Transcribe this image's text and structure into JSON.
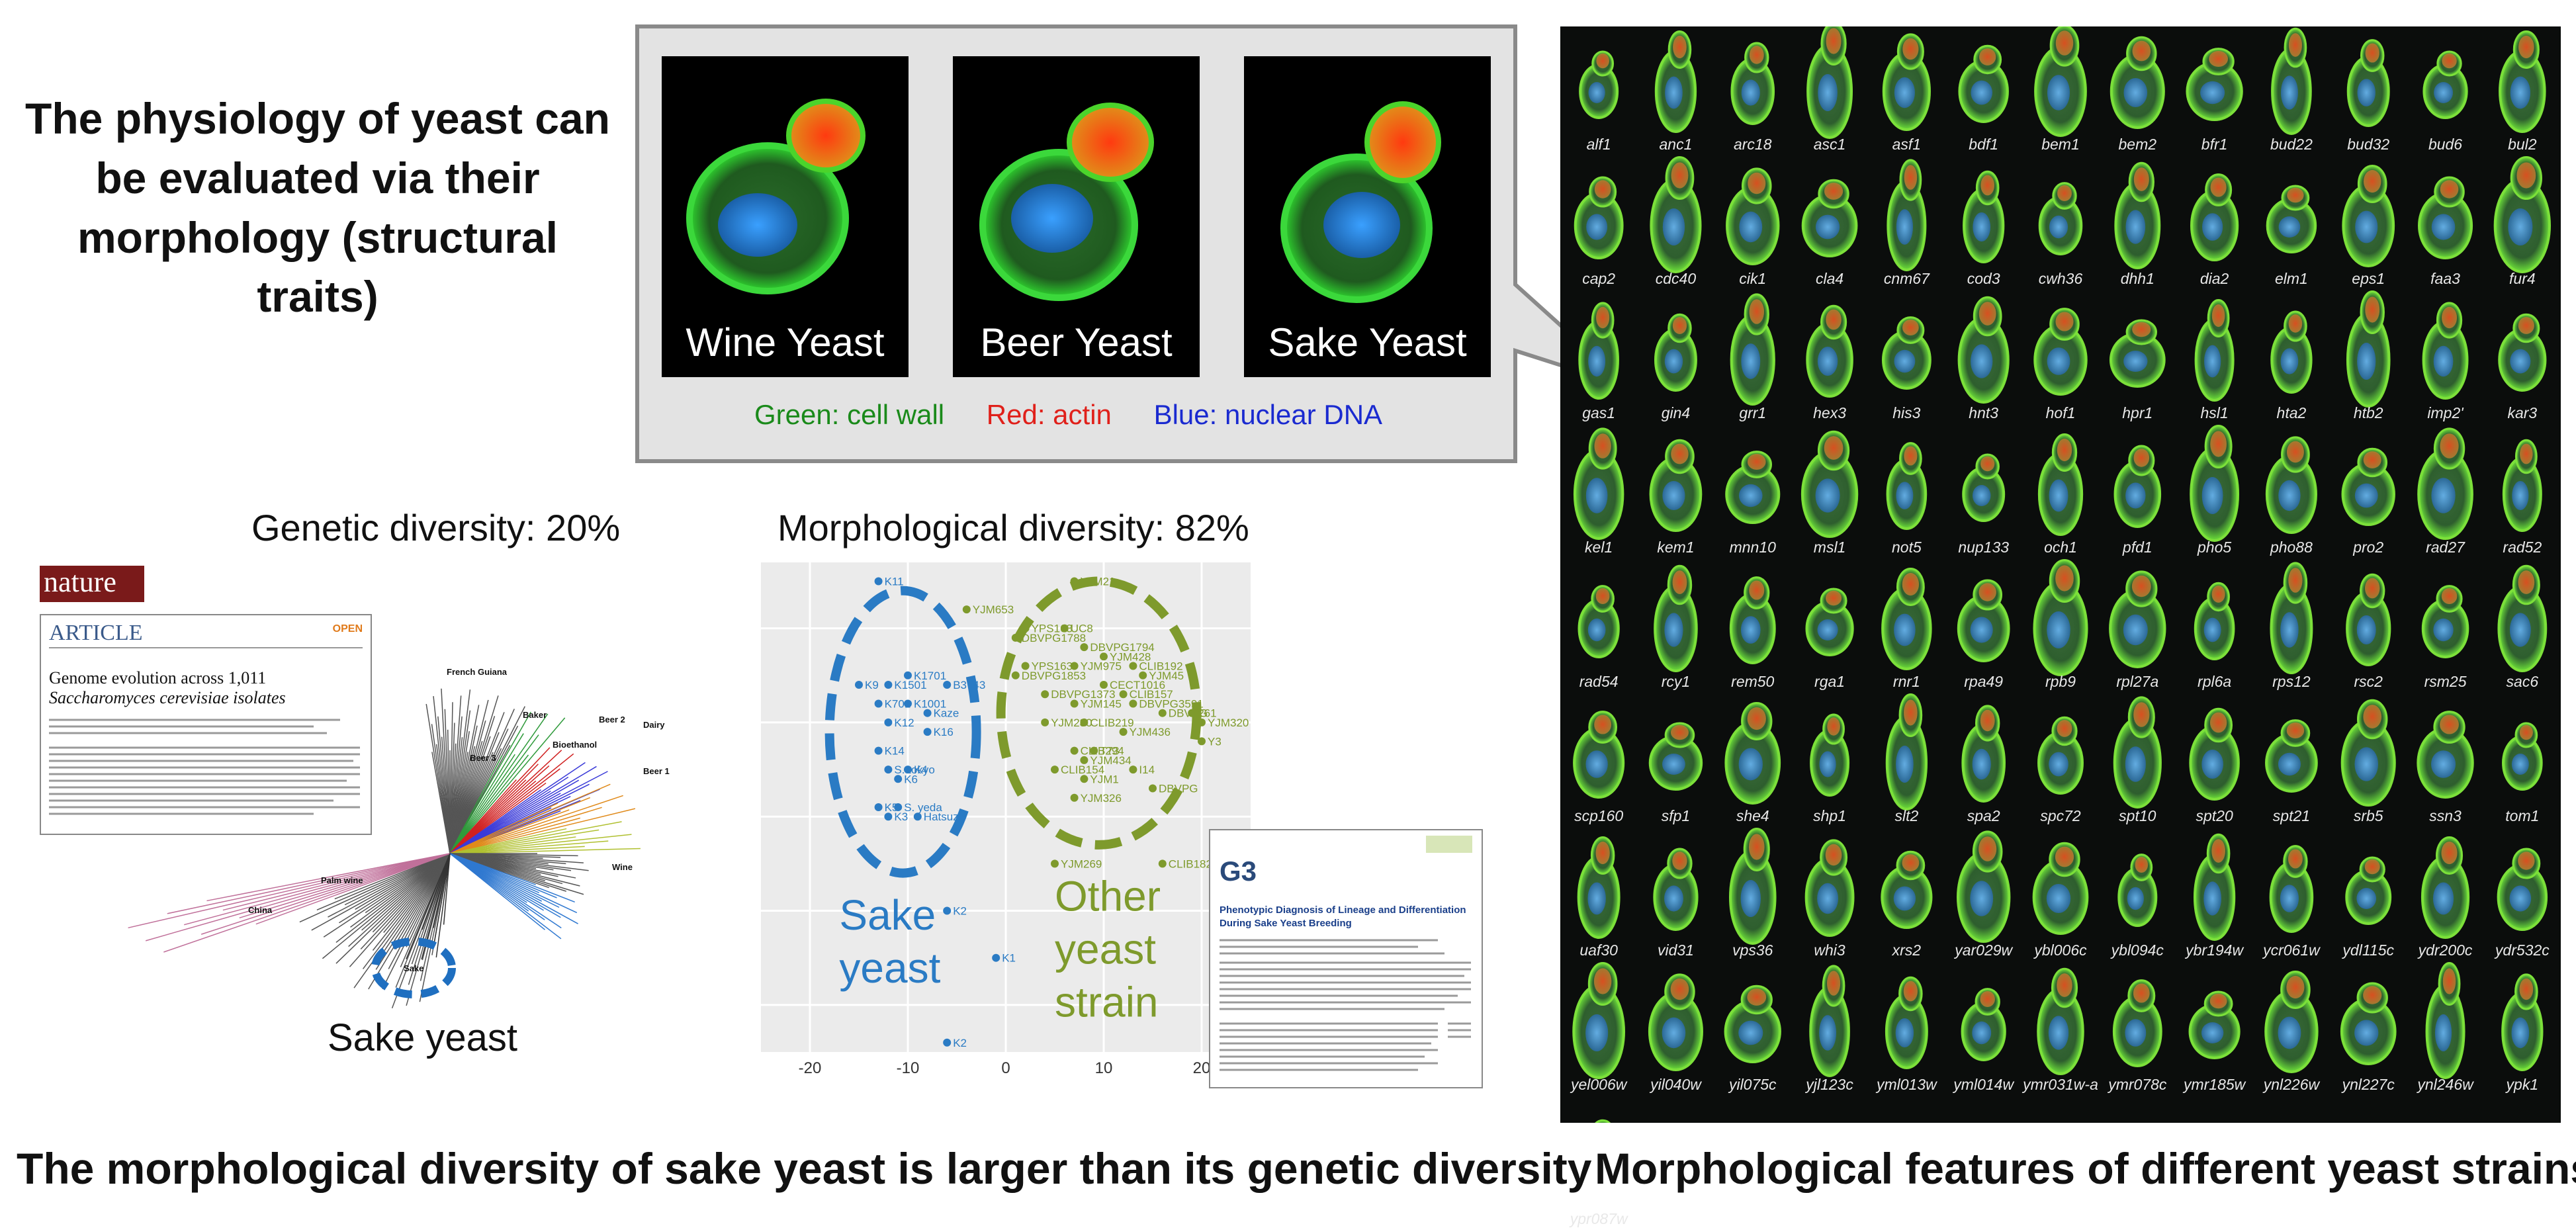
{
  "title_left": [
    "The physiology of yeast can",
    "be evaluated via their",
    "morphology (structural traits)"
  ],
  "panels": [
    {
      "label": "Wine Yeast"
    },
    {
      "label": "Beer Yeast"
    },
    {
      "label": "Sake Yeast"
    }
  ],
  "legend": {
    "green": "Green: cell wall",
    "red": "Red: actin",
    "blue": "Blue: nuclear DNA",
    "colors": {
      "green": "#1a8a1a",
      "red": "#e0201a",
      "blue": "#1a2ad0"
    }
  },
  "genetic_title": "Genetic diversity: 20%",
  "morph_title": "Morphological diversity: 82%",
  "nature": {
    "logo": "nature",
    "section": "ARTICLE",
    "badge": "OPEN",
    "title_line1": "Genome evolution across 1,011",
    "title_line2": "Saccharomyces cerevisiae isolates"
  },
  "tree_labels": {
    "french_guiana": "French Guiana",
    "bakery": "Baker",
    "bioethanol": "Bioethanol",
    "beer2": "Beer 2",
    "dairy": "Dairy",
    "beer1": "Beer 1",
    "beer3": "Beer 3",
    "wine": "Wine",
    "palm_wine": "Palm wine",
    "china": "China",
    "sake": "Sake"
  },
  "sake_yeast_label": "Sake yeast",
  "g3": {
    "logo": "G3",
    "title_line1": "Phenotypic Diagnosis of Lineage and Differentiation",
    "title_line2": "During Sake Yeast Breeding"
  },
  "chart_data": {
    "type": "scatter",
    "xlim": [
      -25,
      25
    ],
    "ylim": [
      -35,
      17
    ],
    "xticks": [
      -20,
      -10,
      0,
      10,
      20
    ],
    "yticks": [
      10,
      0,
      -10,
      -20,
      -30
    ],
    "grid": true,
    "series": [
      {
        "name": "Sake yeast",
        "color": "#2a7bc4",
        "points": [
          {
            "x": -13,
            "y": 15,
            "label": "K11"
          },
          {
            "x": -15,
            "y": 4,
            "label": "K9"
          },
          {
            "x": -12,
            "y": 4,
            "label": "K1501"
          },
          {
            "x": -10,
            "y": 5,
            "label": "K1701"
          },
          {
            "x": -13,
            "y": 2,
            "label": "K701"
          },
          {
            "x": -10,
            "y": 2,
            "label": "K1001"
          },
          {
            "x": -12,
            "y": 0,
            "label": "K12"
          },
          {
            "x": -8,
            "y": 1,
            "label": "Kaze"
          },
          {
            "x": -6,
            "y": 4,
            "label": "B3743"
          },
          {
            "x": -8,
            "y": -1,
            "label": "K16"
          },
          {
            "x": -13,
            "y": -3,
            "label": "K14"
          },
          {
            "x": -12,
            "y": -5,
            "label": "S. tokyo"
          },
          {
            "x": -10,
            "y": -5,
            "label": "K4"
          },
          {
            "x": -11,
            "y": -6,
            "label": "K6"
          },
          {
            "x": -13,
            "y": -9,
            "label": "K5"
          },
          {
            "x": -11,
            "y": -9,
            "label": "S. yeda"
          },
          {
            "x": -12,
            "y": -10,
            "label": "K3"
          },
          {
            "x": -9,
            "y": -10,
            "label": "Hatsuzo"
          },
          {
            "x": -6,
            "y": -20,
            "label": "K2"
          },
          {
            "x": -1,
            "y": -25,
            "label": "K1"
          },
          {
            "x": -6,
            "y": -34,
            "label": "K2"
          }
        ]
      },
      {
        "name": "Other yeast strain",
        "color": "#7e9a2c",
        "points": [
          {
            "x": 7,
            "y": 15,
            "label": "YJM21"
          },
          {
            "x": -4,
            "y": 12,
            "label": "YJM653"
          },
          {
            "x": 2,
            "y": 10,
            "label": "YPS163"
          },
          {
            "x": 6,
            "y": 10,
            "label": "UC8"
          },
          {
            "x": 1,
            "y": 9,
            "label": "DBVPG1788"
          },
          {
            "x": 8,
            "y": 8,
            "label": "DBVPG1794"
          },
          {
            "x": 10,
            "y": 7,
            "label": "YJM428"
          },
          {
            "x": 13,
            "y": 6,
            "label": "CLIB192"
          },
          {
            "x": 2,
            "y": 6,
            "label": "YPS163"
          },
          {
            "x": 7,
            "y": 6,
            "label": "YJM975"
          },
          {
            "x": 14,
            "y": 5,
            "label": "YJM45"
          },
          {
            "x": 1,
            "y": 5,
            "label": "DBVPG1853"
          },
          {
            "x": 10,
            "y": 4,
            "label": "CECT1016"
          },
          {
            "x": 4,
            "y": 3,
            "label": "DBVPG1373"
          },
          {
            "x": 12,
            "y": 3,
            "label": "CLIB157"
          },
          {
            "x": 7,
            "y": 2,
            "label": "YJM145"
          },
          {
            "x": 13,
            "y": 2,
            "label": "DBVPG3591"
          },
          {
            "x": 16,
            "y": 1,
            "label": "DBVPG"
          },
          {
            "x": 19,
            "y": 1,
            "label": "261"
          },
          {
            "x": 4,
            "y": 0,
            "label": "YJM280"
          },
          {
            "x": 8,
            "y": 0,
            "label": "CLIB219"
          },
          {
            "x": 20,
            "y": 0,
            "label": "YJM320"
          },
          {
            "x": 12,
            "y": -1,
            "label": "YJM436"
          },
          {
            "x": 20,
            "y": -2,
            "label": "Y3"
          },
          {
            "x": 9,
            "y": -3,
            "label": "T73"
          },
          {
            "x": 7,
            "y": -3,
            "label": "CLIB294"
          },
          {
            "x": 8,
            "y": -4,
            "label": "YJM434"
          },
          {
            "x": 5,
            "y": -5,
            "label": "CLIB154"
          },
          {
            "x": 13,
            "y": -5,
            "label": "I14"
          },
          {
            "x": 8,
            "y": -6,
            "label": "YJM1"
          },
          {
            "x": 15,
            "y": -7,
            "label": "DBVPG"
          },
          {
            "x": 7,
            "y": -8,
            "label": "YJM326"
          },
          {
            "x": 5,
            "y": -15,
            "label": "YJM269"
          },
          {
            "x": 16,
            "y": -15,
            "label": "CLIB182"
          }
        ]
      }
    ],
    "annotations": [
      {
        "text_lines": [
          "Sake",
          "yeast"
        ],
        "color": "#2a7bc4"
      },
      {
        "text_lines": [
          "Other",
          "yeast",
          "strain"
        ],
        "color": "#7e9a2c"
      }
    ]
  },
  "grid_labels": [
    "alf1",
    "anc1",
    "arc18",
    "asc1",
    "asf1",
    "bdf1",
    "bem1",
    "bem2",
    "bfr1",
    "bud22",
    "bud32",
    "bud6",
    "bul2",
    "cap2",
    "cdc40",
    "cik1",
    "cla4",
    "cnm67",
    "cod3",
    "cwh36",
    "dhh1",
    "dia2",
    "elm1",
    "eps1",
    "faa3",
    "fur4",
    "gas1",
    "gin4",
    "grr1",
    "hex3",
    "his3",
    "hnt3",
    "hof1",
    "hpr1",
    "hsl1",
    "hta2",
    "htb2",
    "imp2'",
    "kar3",
    "kel1",
    "kem1",
    "mnn10",
    "msl1",
    "not5",
    "nup133",
    "och1",
    "pfd1",
    "pho5",
    "pho88",
    "pro2",
    "rad27",
    "rad52",
    "rad54",
    "rcy1",
    "rem50",
    "rga1",
    "rnr1",
    "rpa49",
    "rpb9",
    "rpl27a",
    "rpl6a",
    "rps12",
    "rsc2",
    "rsm25",
    "sac6",
    "scp160",
    "sfp1",
    "she4",
    "shp1",
    "slt2",
    "spa2",
    "spc72",
    "spt10",
    "spt20",
    "spt21",
    "srb5",
    "ssn3",
    "tom1",
    "uaf30",
    "vid31",
    "vps36",
    "whi3",
    "xrs2",
    "yar029w",
    "ybl006c",
    "ybl094c",
    "ybr194w",
    "ycr061w",
    "ydl115c",
    "ydr200c",
    "ydr532c",
    "yel006w",
    "yil040w",
    "yil075c",
    "yjl123c",
    "yml013w",
    "yml014w",
    "ymr031w-a",
    "ymr078c",
    "ymr185w",
    "ynl226w",
    "ynl227c",
    "ynl246w",
    "ypk1",
    "ypr087w"
  ],
  "bottom_left": "The morphological diversity of sake yeast is larger than its genetic diversity",
  "bottom_right": "Morphological features of different yeast strains"
}
